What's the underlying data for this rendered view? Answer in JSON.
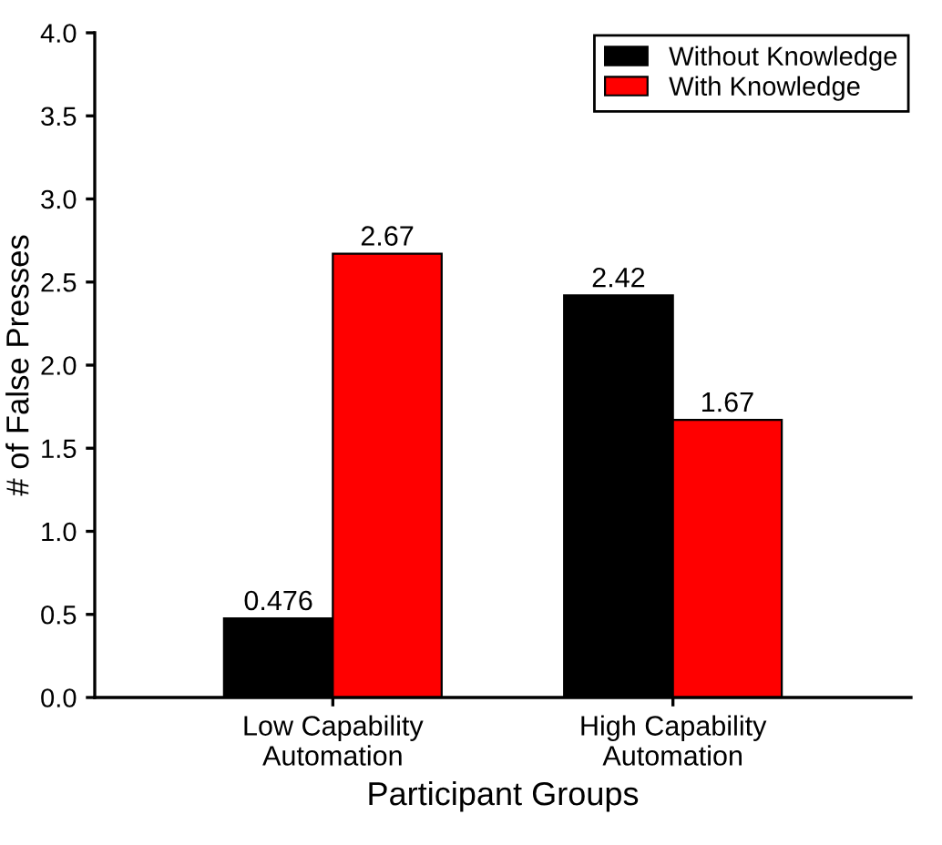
{
  "chart_data": {
    "type": "bar",
    "xlabel": "Participant Groups",
    "ylabel": "# of False Presses",
    "categories": [
      "Low Capability\nAutomation",
      "High Capability\nAutomation"
    ],
    "series": [
      {
        "name": "Without Knowledge",
        "color": "#000000",
        "values": [
          0.476,
          2.42
        ]
      },
      {
        "name": "With Knowledge",
        "color": "#ff0000",
        "values": [
          2.67,
          1.67
        ]
      }
    ],
    "ylim": [
      0,
      4
    ],
    "yticks": [
      {
        "value": 0,
        "label": "0.0"
      },
      {
        "value": 0.5,
        "label": "0.5"
      },
      {
        "value": 1,
        "label": "1.0"
      },
      {
        "value": 1.5,
        "label": "1.5"
      },
      {
        "value": 2,
        "label": "2.0"
      },
      {
        "value": 2.5,
        "label": "2.5"
      },
      {
        "value": 3,
        "label": "3.0"
      },
      {
        "value": 3.5,
        "label": "3.5"
      },
      {
        "value": 4,
        "label": "4.0"
      }
    ],
    "data_labels": true,
    "grid": false,
    "legend": "top right"
  }
}
